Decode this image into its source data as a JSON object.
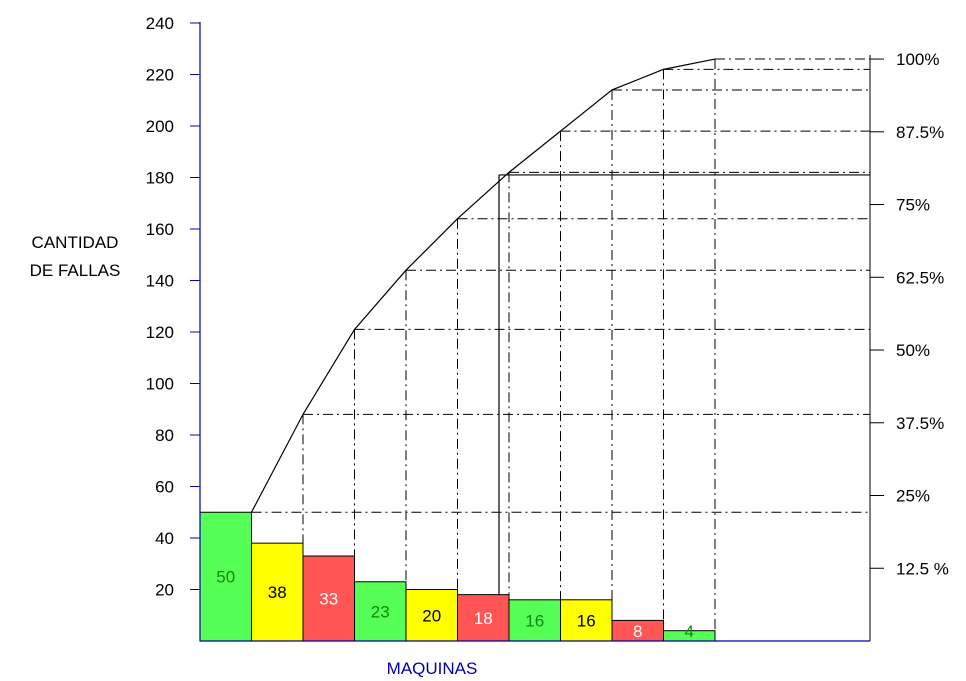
{
  "chart_data": {
    "type": "bar",
    "subtype": "pareto",
    "xlabel": "MAQUINAS",
    "ylabel_lines": [
      "CANTIDAD",
      "DE FALLAS"
    ],
    "ylim": [
      0,
      240
    ],
    "yticks": [
      20,
      40,
      60,
      80,
      100,
      120,
      140,
      160,
      180,
      200,
      220,
      240
    ],
    "ytick_labels": [
      "20",
      "40",
      "60",
      "80",
      "100",
      "120",
      "140",
      "160",
      "180",
      "200",
      "220",
      "240"
    ],
    "right_axis_ticks": [
      {
        "value": 12.5,
        "label": "12.5 %"
      },
      {
        "value": 25,
        "label": "25%"
      },
      {
        "value": 37.5,
        "label": "37.5%"
      },
      {
        "value": 50,
        "label": "50%"
      },
      {
        "value": 62.5,
        "label": "62.5%"
      },
      {
        "value": 75,
        "label": "75%"
      },
      {
        "value": 87.5,
        "label": "87.5%"
      },
      {
        "value": 100,
        "label": "100%"
      }
    ],
    "values": [
      50,
      38,
      33,
      23,
      20,
      18,
      16,
      16,
      8,
      4
    ],
    "value_labels": [
      "50",
      "38",
      "33",
      "23",
      "20",
      "18",
      "16",
      "16",
      "8",
      "4"
    ],
    "bar_colors": [
      "#55ff55",
      "#ffff00",
      "#ff5555",
      "#55ff55",
      "#ffff00",
      "#ff5555",
      "#55ff55",
      "#ffff00",
      "#ff5555",
      "#55ff55"
    ],
    "label_colors": [
      "#118811",
      "#000000",
      "#ffffff",
      "#118811",
      "#000000",
      "#ffffff",
      "#118811",
      "#000000",
      "#ffffff",
      "#118811"
    ],
    "cumulative": [
      50,
      88,
      121,
      144,
      164,
      182,
      198,
      214,
      222,
      226
    ],
    "cutoff_value": 181,
    "axis_color": "#0000aa",
    "xlabel_color": "#0000aa",
    "grid": "dash-dot"
  }
}
